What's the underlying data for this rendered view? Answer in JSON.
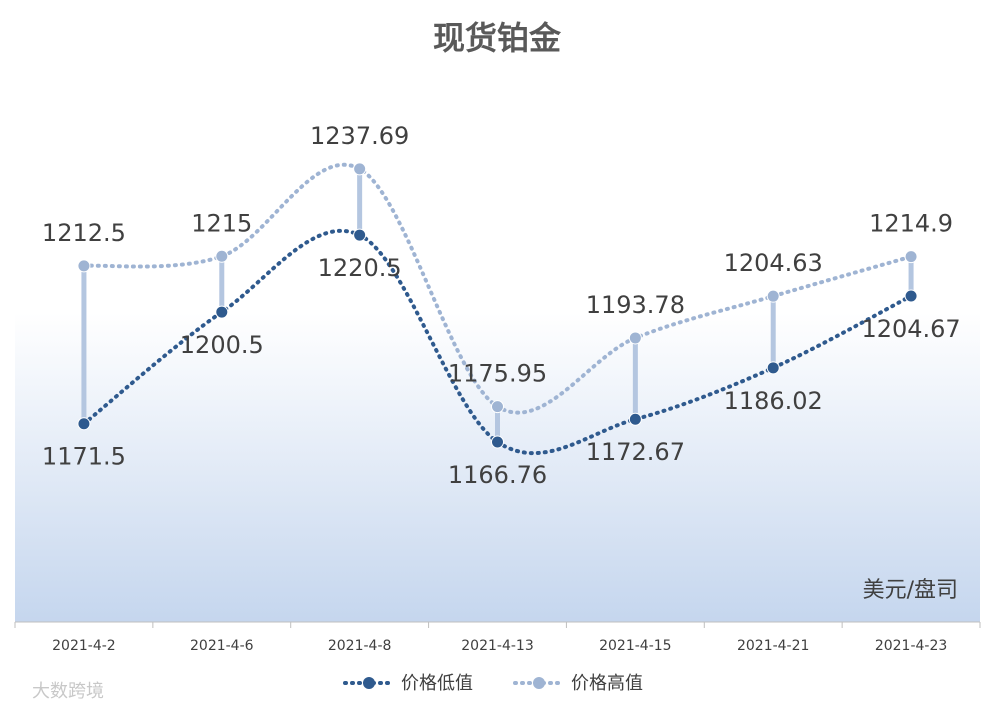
{
  "chart_data": {
    "type": "line",
    "title": "现货铂金",
    "categories": [
      "2021-4-2",
      "2021-4-6",
      "2021-4-8",
      "2021-4-13",
      "2021-4-15",
      "2021-4-21",
      "2021-4-23"
    ],
    "series": [
      {
        "name": "价格低值",
        "color": "#2f5a8e",
        "values": [
          1171.5,
          1200.5,
          1220.5,
          1166.76,
          1172.67,
          1186.02,
          1204.67
        ]
      },
      {
        "name": "价格高值",
        "color": "#9fb4d3",
        "values": [
          1212.5,
          1215,
          1237.69,
          1175.95,
          1193.78,
          1204.63,
          1214.9
        ]
      }
    ],
    "ylim": [
      1120,
      1260
    ],
    "unit_label": "美元/盘司",
    "watermark": "大数跨境",
    "legend": "bottom"
  }
}
